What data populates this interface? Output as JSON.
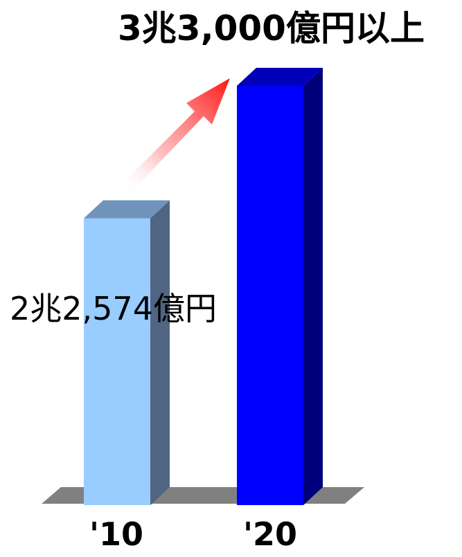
{
  "chart_data": {
    "type": "bar",
    "categories": [
      "'10",
      "'20"
    ],
    "values": [
      22574,
      33000
    ],
    "data_labels": [
      "2兆2,574億円",
      "3兆3,000億円以上"
    ],
    "unit": "億円",
    "colors": {
      "bar1_front": "#99ccff",
      "bar1_top": "#6f93bb",
      "bar1_side": "#4f6582",
      "bar2_front": "#0000ff",
      "bar2_top": "#0000b8",
      "bar2_side": "#00007a",
      "floor": "#808080",
      "arrow": "#ff2020"
    },
    "growth_arrow": true,
    "grid": false,
    "legend": "none"
  }
}
